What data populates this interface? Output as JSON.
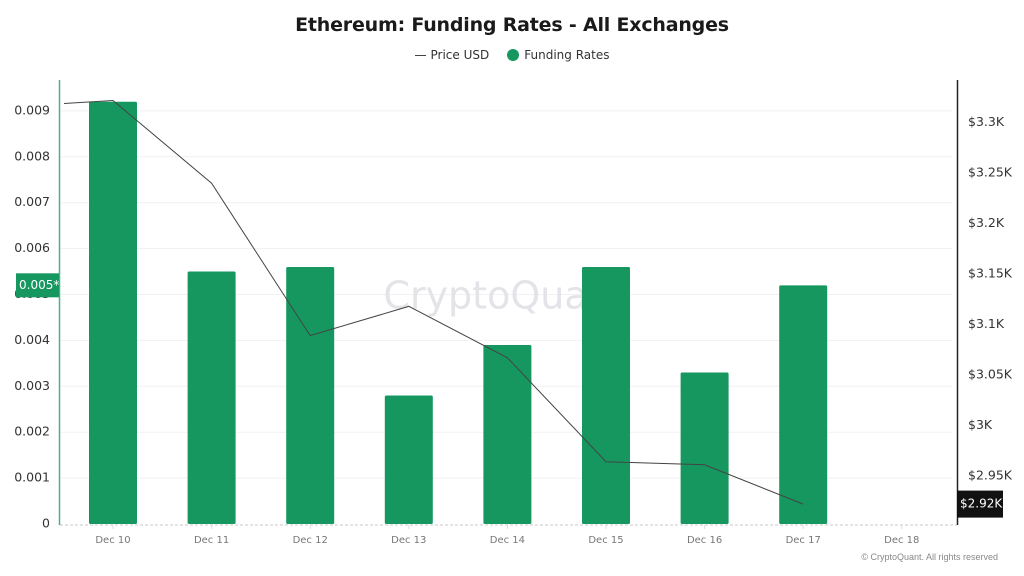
{
  "chart_data": {
    "type": "bar",
    "title": "Ethereum: Funding Rates - All Exchanges",
    "legend": [
      {
        "name": "Price USD",
        "marker": "line"
      },
      {
        "name": "Funding Rates",
        "marker": "dot"
      }
    ],
    "legend_position": "top-center",
    "categories": [
      "Dec 10",
      "Dec 11",
      "Dec 12",
      "Dec 13",
      "Dec 14",
      "Dec 15",
      "Dec 16",
      "Dec 17",
      "Dec 18"
    ],
    "series": [
      {
        "name": "Funding Rates",
        "type": "bar",
        "axis": "left",
        "color": "#16975f",
        "values": [
          0.0092,
          0.0055,
          0.0056,
          0.0028,
          0.0039,
          0.0056,
          0.0033,
          0.0052,
          null
        ]
      },
      {
        "name": "Price USD",
        "type": "line",
        "axis": "right",
        "color": "#444444",
        "line_start_left_edge": 3319,
        "values": [
          3322,
          3240,
          3089,
          3118,
          3067,
          2964,
          2961,
          2922,
          null
        ]
      }
    ],
    "left_axis": {
      "ylim": [
        0,
        0.009
      ],
      "ticks": [
        "0",
        "0.001",
        "0.002",
        "0.003",
        "0.004",
        "0.005",
        "0.006",
        "0.007",
        "0.008",
        "0.009"
      ],
      "tick_values": [
        0,
        0.001,
        0.002,
        0.003,
        0.004,
        0.005,
        0.006,
        0.007,
        0.008,
        0.009
      ],
      "current_marker": "0.005*",
      "current_marker_value": 0.0052,
      "color": "#16975f"
    },
    "right_axis": {
      "ylim": [
        2920,
        3320
      ],
      "ticks": [
        "$2.95K",
        "$3K",
        "$3.05K",
        "$3.1K",
        "$3.15K",
        "$3.2K",
        "$3.25K",
        "$3.3K"
      ],
      "tick_values": [
        2950,
        3000,
        3050,
        3100,
        3150,
        3200,
        3250,
        3300
      ],
      "current_marker": "$2.92K",
      "current_marker_value": 2922
    },
    "xlabel": "",
    "ylabel": "",
    "grid": true,
    "watermark": "CryptoQuant"
  },
  "footer": {
    "copyright": "© CryptoQuant. All rights reserved"
  }
}
